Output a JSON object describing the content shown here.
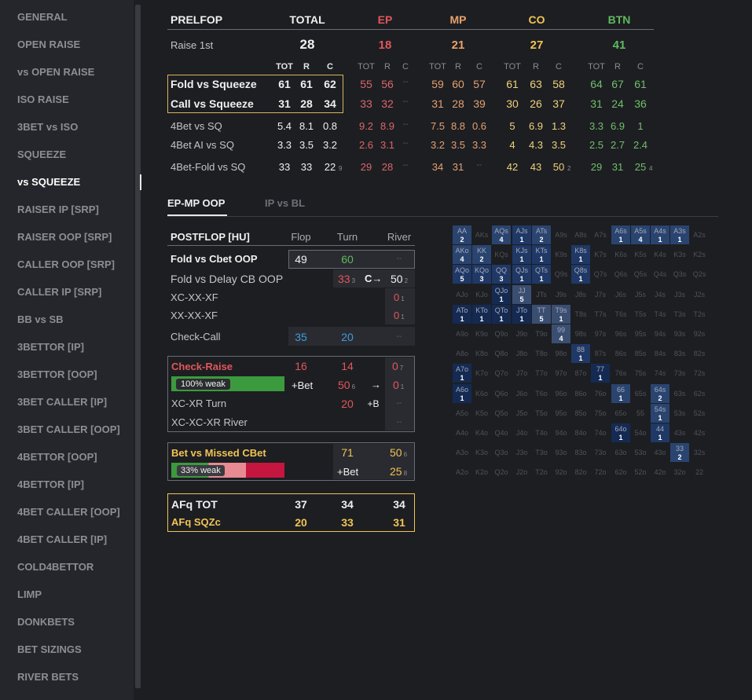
{
  "sidebar": {
    "items": [
      "GENERAL",
      "OPEN RAISE",
      "vs OPEN RAISE",
      "ISO RAISE",
      "3BET vs ISO",
      "SQUEEZE",
      "vs SQUEEZE",
      "RAISER IP [SRP]",
      "RAISER OOP [SRP]",
      "CALLER OOP [SRP]",
      "CALLER IP [SRP]",
      "BB vs SB",
      "3BETTOR [IP]",
      "3BETTOR [OOP]",
      "3BET CALLER [IP]",
      "3BET CALLER [OOP]",
      "4BETTOR [OOP]",
      "4BETTOR [IP]",
      "4BET CALLER [OOP]",
      "4BET CALLER [IP]",
      "COLD4BETTOR",
      "LIMP",
      "DONKBETS",
      "BET SIZINGS",
      "RIVER BETS"
    ],
    "active": "vs SQUEEZE"
  },
  "prelop": {
    "title": "PRELFOP",
    "positions": [
      "TOTAL",
      "EP",
      "MP",
      "CO",
      "BTN"
    ],
    "raise_first": {
      "label": "Raise 1st",
      "values": [
        "28",
        "18",
        "21",
        "27",
        "41"
      ]
    },
    "sub_headers": [
      "TOT",
      "R",
      "C"
    ],
    "rows": [
      {
        "label": "Fold vs Squeeze",
        "vals": [
          "61",
          "61",
          "62",
          "55",
          "56",
          "--",
          "59",
          "60",
          "57",
          "61",
          "63",
          "58",
          "64",
          "67",
          "61"
        ]
      },
      {
        "label": "Call vs Squeeze",
        "vals": [
          "31",
          "28",
          "34",
          "33",
          "32",
          "--",
          "31",
          "28",
          "39",
          "30",
          "26",
          "37",
          "31",
          "24",
          "36"
        ]
      },
      {
        "label": "4Bet vs SQ",
        "vals": [
          "5.4",
          "8.1",
          "0.8",
          "9.2",
          "8.9",
          "--",
          "7.5",
          "8.8",
          "0.6",
          "5",
          "6.9",
          "1.3",
          "3.3",
          "6.9",
          "1"
        ]
      },
      {
        "label": "4Bet AI vs SQ",
        "vals": [
          "3.3",
          "3.5",
          "3.2",
          "2.6",
          "3.1",
          "--",
          "3.2",
          "3.5",
          "3.3",
          "4",
          "4.3",
          "3.5",
          "2.5",
          "2.7",
          "2.4"
        ]
      },
      {
        "label": "4Bet-Fold vs SQ",
        "vals": [
          "33",
          "33",
          "22",
          "29",
          "28",
          "--",
          "34",
          "31",
          "--",
          "42",
          "43",
          "50",
          "29",
          "31",
          "25"
        ],
        "subs": [
          "9",
          "2",
          "4"
        ]
      }
    ]
  },
  "tabs": [
    "EP-MP OOP",
    "IP vs BL"
  ],
  "postflop": {
    "title": "POSTFLOP [HU]",
    "cols": [
      "Flop",
      "Turn",
      "River"
    ],
    "fold_cbet": {
      "label": "Fold vs Cbet OOP",
      "flop": "49",
      "turn": "60",
      "river": "--"
    },
    "fold_delay": {
      "label": "Fold vs Delay CB OOP",
      "turn": "33",
      "turn_sub": "3",
      "arrow": "C→",
      "river": "50",
      "river_sub": "2"
    },
    "xc_xx_xf": {
      "label": "XC-XX-XF",
      "river": "0",
      "river_sub": "1"
    },
    "xx_xx_xf": {
      "label": "XX-XX-XF",
      "river": "0",
      "river_sub": "1"
    },
    "check_call": {
      "label": "Check-Call",
      "flop": "35",
      "turn": "20",
      "river": "--"
    },
    "check_raise": {
      "label": "Check-Raise",
      "flop": "16",
      "turn": "14",
      "river": "0",
      "river_sub": "7",
      "weak_label": "100% weak",
      "weak_pct": 100,
      "bet": "+Bet",
      "t2": "50",
      "t2_sub": "6",
      "arrow": "→",
      "r2": "0",
      "r2_sub": "1"
    },
    "xc_xr_turn": {
      "label": "XC-XR Turn",
      "turn": "20",
      "b": "+B",
      "river": "--"
    },
    "xc_xc_xr_river": {
      "label": "XC-XC-XR River",
      "river": "--"
    },
    "bet_missed": {
      "label": "Bet vs Missed CBet",
      "turn": "71",
      "river": "50",
      "river_sub": "6",
      "weak_label": "33% weak",
      "weak_pct": 33,
      "bet": "+Bet",
      "r2": "25",
      "r2_sub": "8"
    },
    "afq": {
      "tot_label": "AFq TOT",
      "tot": [
        "37",
        "34",
        "34"
      ],
      "sqz_label": "AFq SQZc",
      "sqz": [
        "20",
        "33",
        "31"
      ]
    }
  },
  "range_grid": {
    "rows": [
      [
        "AA",
        "AKs",
        "AQs",
        "AJs",
        "ATs",
        "A9s",
        "A8s",
        "A7s",
        "A6s",
        "A5s",
        "A4s",
        "A3s",
        "A2s"
      ],
      [
        "AKo",
        "KK",
        "KQs",
        "KJs",
        "KTs",
        "K9s",
        "K8s",
        "K7s",
        "K6s",
        "K5s",
        "K4s",
        "K3s",
        "K2s"
      ],
      [
        "AQo",
        "KQo",
        "QQ",
        "QJs",
        "QTs",
        "Q9s",
        "Q8s",
        "Q7s",
        "Q6s",
        "Q5s",
        "Q4s",
        "Q3s",
        "Q2s"
      ],
      [
        "AJo",
        "KJo",
        "QJo",
        "JJ",
        "JTs",
        "J9s",
        "J8s",
        "J7s",
        "J6s",
        "J5s",
        "J4s",
        "J3s",
        "J2s"
      ],
      [
        "ATo",
        "KTo",
        "QTo",
        "JTo",
        "TT",
        "T9s",
        "T8s",
        "T7s",
        "T6s",
        "T5s",
        "T4s",
        "T3s",
        "T2s"
      ],
      [
        "A9o",
        "K9o",
        "Q9o",
        "J9o",
        "T9o",
        "99",
        "98s",
        "97s",
        "96s",
        "95s",
        "94s",
        "93s",
        "92s"
      ],
      [
        "A8o",
        "K8o",
        "Q8o",
        "J8o",
        "T8o",
        "98o",
        "88",
        "87s",
        "86s",
        "85s",
        "84s",
        "83s",
        "82s"
      ],
      [
        "A7o",
        "K7o",
        "Q7o",
        "J7o",
        "T7o",
        "97o",
        "87o",
        "77",
        "76s",
        "75s",
        "74s",
        "73s",
        "72s"
      ],
      [
        "A6o",
        "K6o",
        "Q6o",
        "J6o",
        "T6o",
        "96o",
        "86o",
        "76o",
        "66",
        "65s",
        "64s",
        "63s",
        "62s"
      ],
      [
        "A5o",
        "K5o",
        "Q5o",
        "J5o",
        "T5o",
        "95o",
        "85o",
        "75o",
        "65o",
        "55",
        "54s",
        "53s",
        "52s"
      ],
      [
        "A4o",
        "K4o",
        "Q4o",
        "J4o",
        "T4o",
        "94o",
        "84o",
        "74o",
        "64o",
        "54o",
        "44",
        "43s",
        "42s"
      ],
      [
        "A3o",
        "K3o",
        "Q3o",
        "J3o",
        "T3o",
        "93o",
        "83o",
        "73o",
        "63o",
        "53o",
        "43o",
        "33",
        "32s"
      ],
      [
        "A2o",
        "K2o",
        "Q2o",
        "J2o",
        "T2o",
        "92o",
        "82o",
        "72o",
        "62o",
        "52o",
        "42o",
        "32o",
        "22"
      ]
    ],
    "counts": {
      "AA": "2",
      "AQs": "4",
      "AJs": "1",
      "ATs": "2",
      "A6s": "1",
      "A5s": "4",
      "A4s": "1",
      "A3s": "1",
      "AKo": "4",
      "KK": "2",
      "KJs": "1",
      "KTs": "1",
      "K8s": "1",
      "AQo": "5",
      "KQo": "3",
      "QQ": "3",
      "QJs": "1",
      "QTs": "1",
      "Q8s": "1",
      "QJo": "1",
      "JJ": "5",
      "ATo": "1",
      "KTo": "1",
      "QTo": "1",
      "JTo": "1",
      "TT": "5",
      "T9s": "1",
      "99": "4",
      "88": "1",
      "A7o": "1",
      "77": "1",
      "A6o": "1",
      "66": "1",
      "64s": "2",
      "54s": "1",
      "64o": "1",
      "44": "1",
      "33": "2"
    }
  }
}
